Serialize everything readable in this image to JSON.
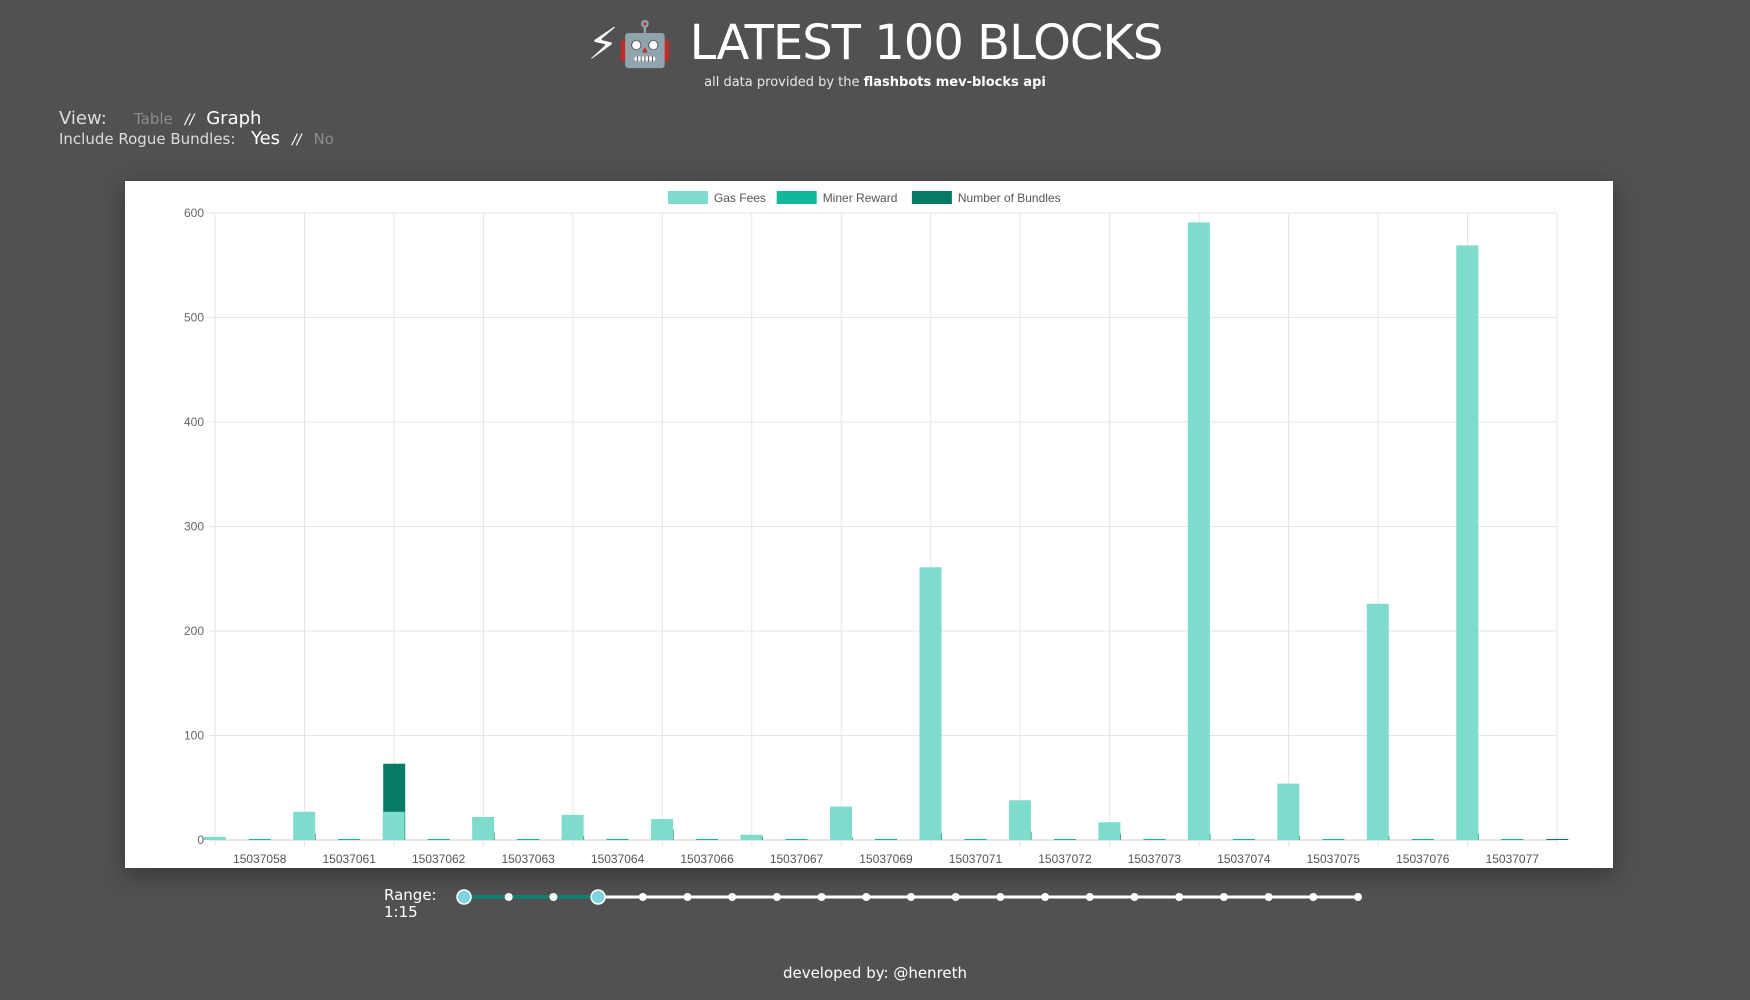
{
  "header": {
    "icons": [
      "high-voltage-emoji",
      "robot-emoji"
    ],
    "emoji_text": "⚡🤖",
    "title": "LATEST 100 BLOCKS",
    "subtitle_prefix": "all data provided by the",
    "subtitle_link": "flashbots mev-blocks api"
  },
  "controls": {
    "view_label": "View:",
    "view_options": [
      "Table",
      "Graph"
    ],
    "view_selected": "Graph",
    "rogue_label": "Include Rogue Bundles:",
    "rogue_options": [
      "Yes",
      "No"
    ],
    "rogue_selected": "Yes",
    "separator": "//"
  },
  "chart_data": {
    "type": "bar",
    "categories": [
      "15037058",
      "15037061",
      "15037062",
      "15037063",
      "15037064",
      "15037066",
      "15037067",
      "15037069",
      "15037071",
      "15037072",
      "15037073",
      "15037074",
      "15037075",
      "15037076",
      "15037077"
    ],
    "series": [
      {
        "name": "Gas Fees",
        "color": "#7ddccb",
        "values": [
          3,
          27,
          27,
          22,
          24,
          20,
          5,
          32,
          261,
          38,
          17,
          591,
          54,
          226,
          569
        ]
      },
      {
        "name": "Miner Reward",
        "color": "#12b89a",
        "values": [
          1,
          1,
          1,
          1,
          1,
          1,
          1,
          1,
          1,
          1,
          1,
          1,
          1,
          1,
          1
        ]
      },
      {
        "name": "Number of Bundles",
        "color": "#077a66",
        "values": [
          6,
          73,
          7,
          4,
          10,
          3,
          3,
          6,
          8,
          6,
          6,
          4,
          4,
          6,
          1
        ]
      }
    ],
    "ylim": [
      0,
      600
    ],
    "yticks": [
      0,
      100,
      200,
      300,
      400,
      500,
      600
    ],
    "grid": true,
    "legend": "top-center"
  },
  "range": {
    "label": "Range:",
    "value": "1:15",
    "stops": 21,
    "selected_start": 0,
    "selected_end": 3
  },
  "footer": {
    "text": "developed by: @henreth"
  }
}
